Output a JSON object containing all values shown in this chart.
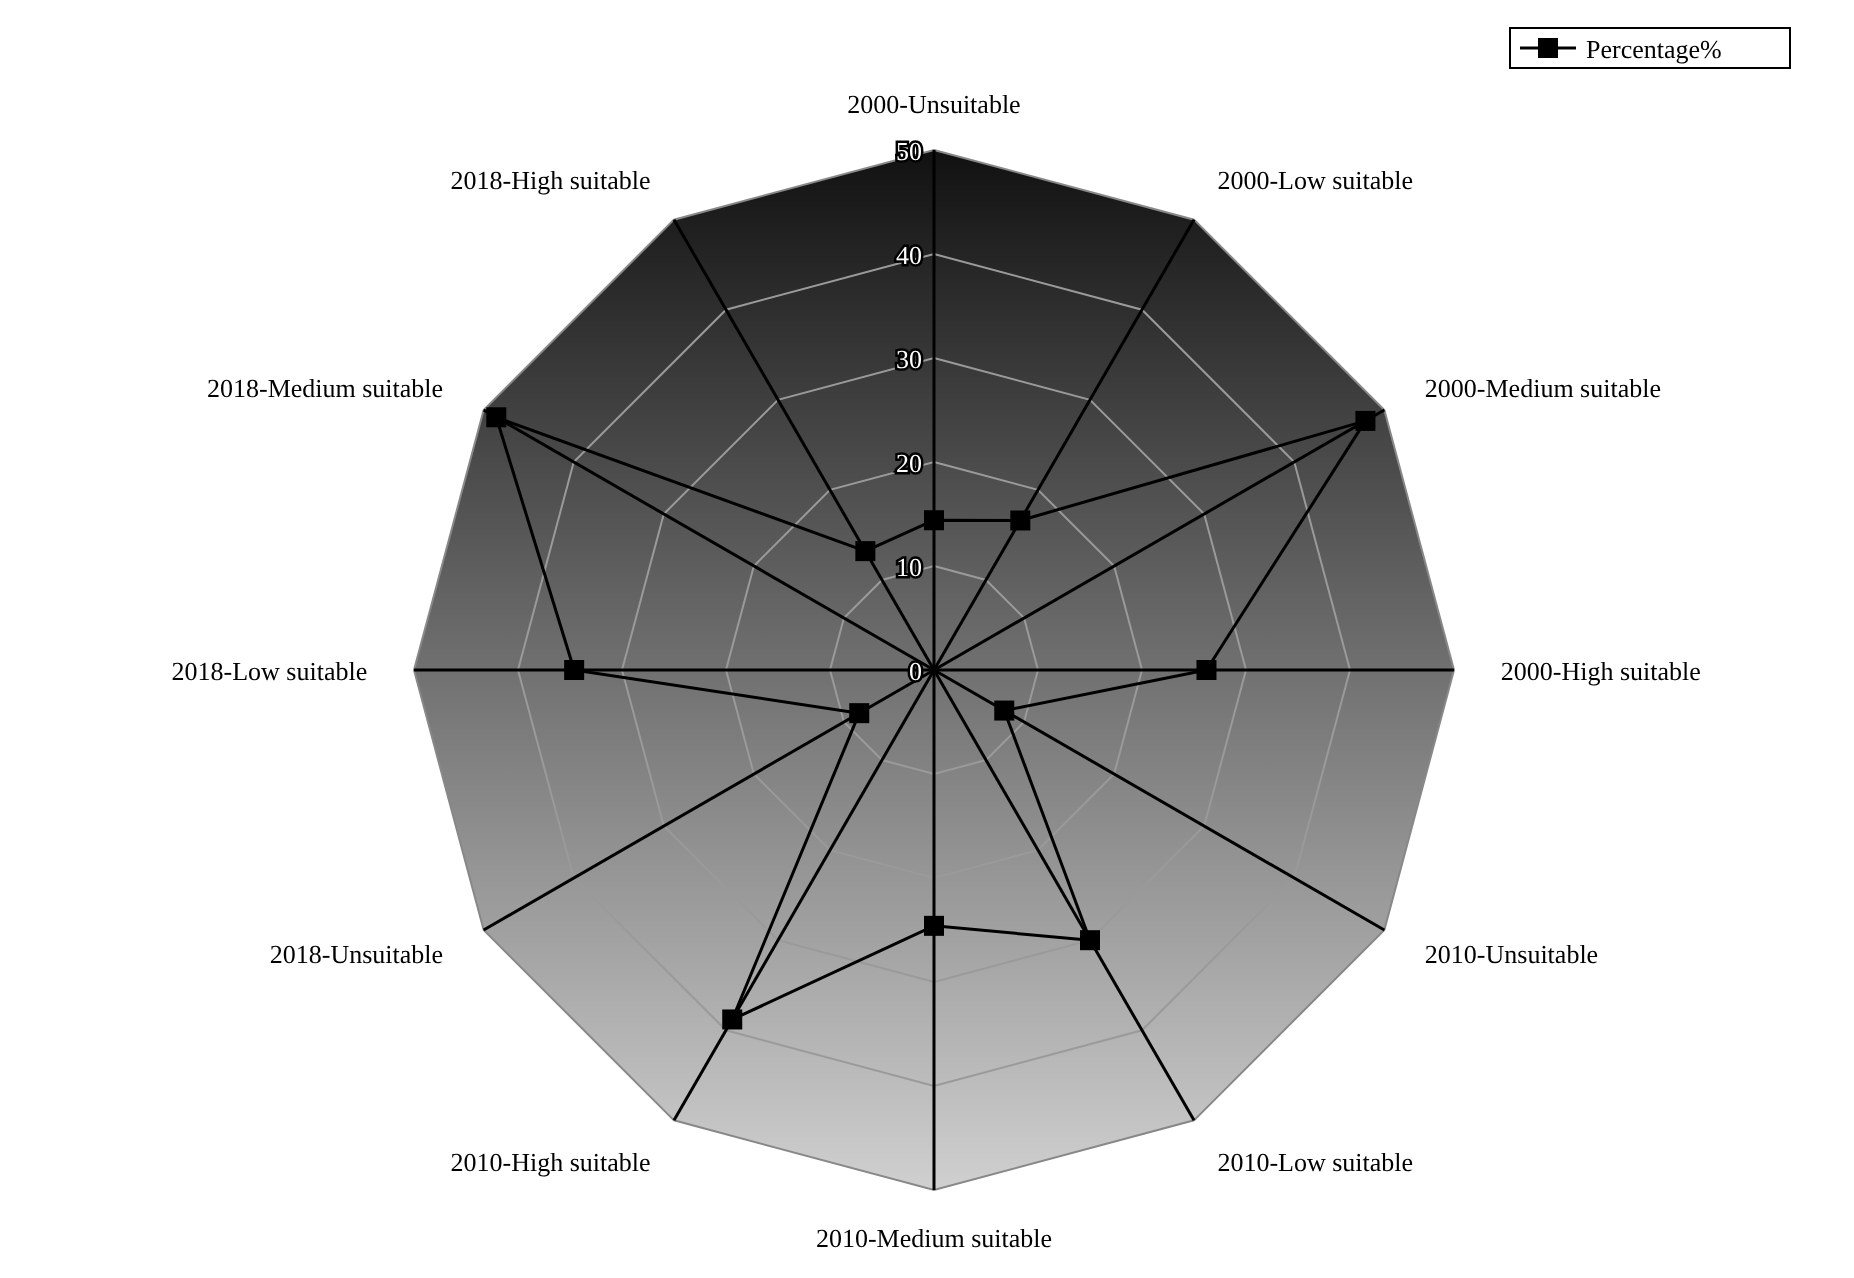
{
  "chart_data": {
    "type": "radar",
    "categories": [
      "2000-Unsuitable",
      "2000-Low suitable",
      "2000-Medium suitable",
      "2000-High suitable",
      "2010-Unsuitable",
      "2010-Low suitable",
      "2010-Medium suitable",
      "2010-High suitable",
      "2018-Unsuitable",
      "2018-Low suitable",
      "2018-Medium suitable",
      "2018-High suitable"
    ],
    "series": [
      {
        "name": "Percentage%",
        "color": "#000000",
        "values": [
          14.4,
          16.6,
          47.9,
          26.2,
          7.8,
          30,
          24.6,
          38.8,
          8.3,
          34.6,
          48.6,
          13.2
        ]
      }
    ],
    "ylim": [
      0,
      50
    ],
    "yticks": [
      0,
      10,
      20,
      30,
      40,
      50
    ],
    "grid": true,
    "legend": "top right",
    "marker": "square",
    "line_style": "solid"
  }
}
